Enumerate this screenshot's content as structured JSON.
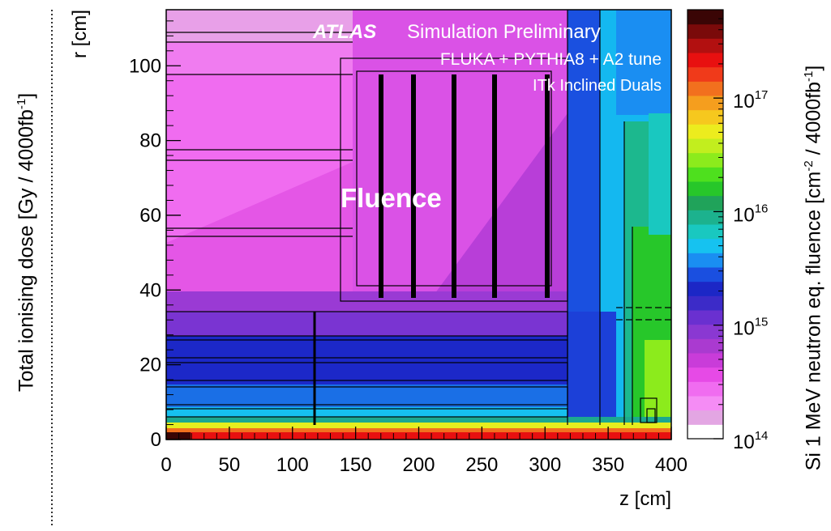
{
  "left_panel": {
    "label_prefix": "Total ionising dose",
    "label_unit": "[Gy / 4000fb",
    "label_unit_sup": "-1",
    "label_unit_close": "]"
  },
  "chart_data": {
    "type": "heatmap",
    "title": "ATLAS",
    "title_rest": "Simulation Preliminary",
    "subtitle": "FLUKA + PYTHIA8 + A2 tune",
    "subtitle2": "ITk Inclined Duals",
    "annotation": "Fluence",
    "xlabel": "z [cm]",
    "ylabel": "r [cm]",
    "xlim": [
      0,
      400
    ],
    "ylim": [
      0,
      115
    ],
    "x_ticks": [
      "0",
      "50",
      "100",
      "150",
      "200",
      "250",
      "300",
      "350",
      "400"
    ],
    "y_ticks": [
      "0",
      "20",
      "40",
      "60",
      "80",
      "100"
    ],
    "colorbar": {
      "label": "Si 1 MeV neutron eq. fluence",
      "label_unit": "[cm",
      "label_unit_sup": "-2",
      "label_unit_rest": " / 4000fb",
      "label_unit_sup2": "-1",
      "label_unit_close": "]",
      "scale": "log",
      "range": [
        100000000000000.0,
        6e+17
      ],
      "tick_bases": [
        "10",
        "10",
        "10",
        "10"
      ],
      "tick_exponents": [
        "14",
        "15",
        "16",
        "17"
      ],
      "colors": [
        "#ffffff",
        "#e3a6e3",
        "#f58cf5",
        "#f06cf0",
        "#e64ae6",
        "#c93cd9",
        "#aa3ad0",
        "#8a38d2",
        "#6a30d0",
        "#3c2bc8",
        "#1c27c6",
        "#1a4fe0",
        "#1a8ef2",
        "#16c2f0",
        "#19c8c0",
        "#1cb28e",
        "#20a35a",
        "#27c72a",
        "#4ee01e",
        "#8ceb1c",
        "#c2ee1e",
        "#ecec1e",
        "#f6c81e",
        "#f59e1e",
        "#f2701e",
        "#f03a1a",
        "#e81010",
        "#b21010",
        "#7a0a0a",
        "#3a0505"
      ]
    }
  }
}
